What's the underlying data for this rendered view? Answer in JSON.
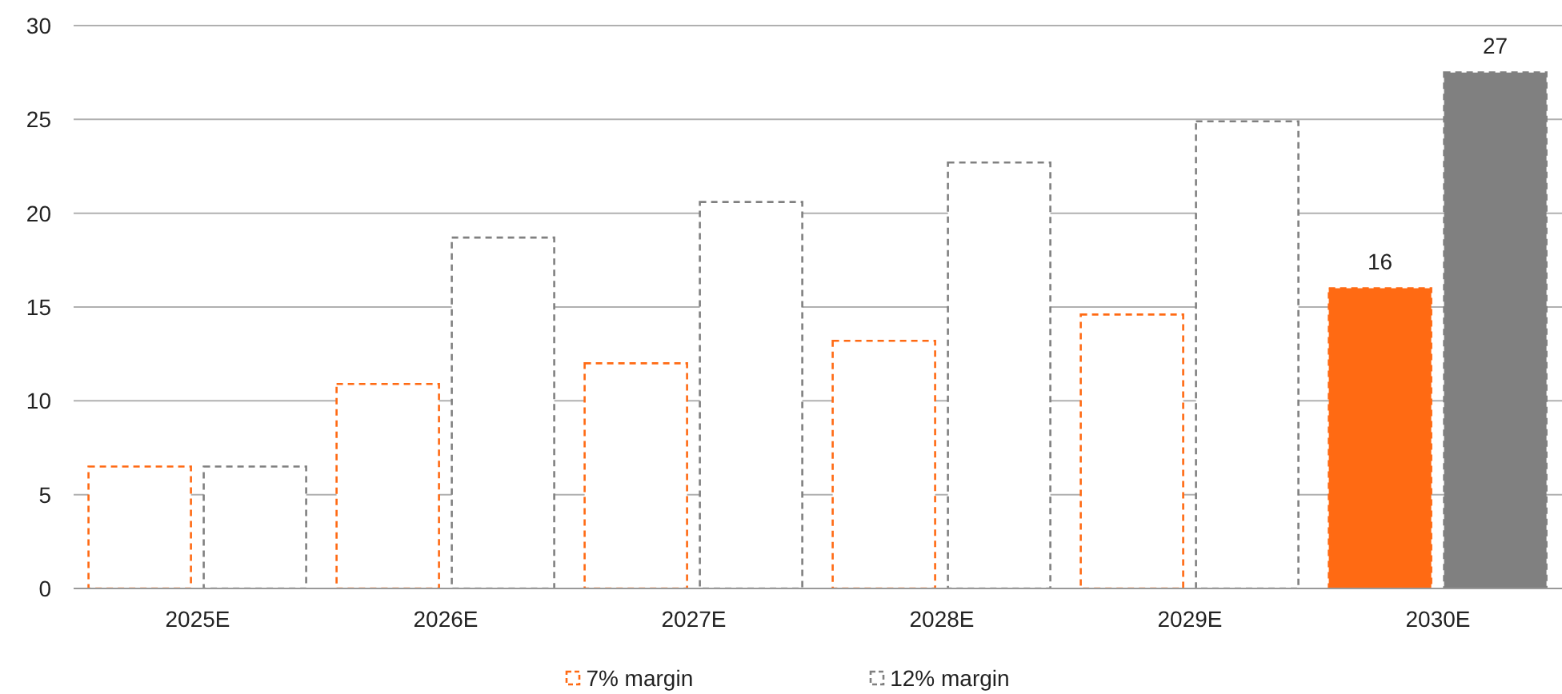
{
  "chart_data": {
    "type": "bar",
    "categories": [
      "2025E",
      "2026E",
      "2027E",
      "2028E",
      "2029E",
      "2030E"
    ],
    "series": [
      {
        "name": "7% margin",
        "color": "#ff6a13",
        "values": [
          6.5,
          10.9,
          12.0,
          13.2,
          14.6,
          16.0
        ],
        "value_labels": [
          null,
          null,
          null,
          null,
          null,
          "16"
        ]
      },
      {
        "name": "12% margin",
        "color": "#808080",
        "values": [
          6.5,
          18.7,
          20.6,
          22.7,
          24.9,
          27.5
        ],
        "value_labels": [
          null,
          null,
          null,
          null,
          null,
          "27"
        ]
      }
    ],
    "ylim": [
      0,
      30
    ],
    "yticks": [
      0,
      5,
      10,
      15,
      20,
      25,
      30
    ],
    "grid": "y",
    "legend": "bottom",
    "line_style": "dashed"
  }
}
